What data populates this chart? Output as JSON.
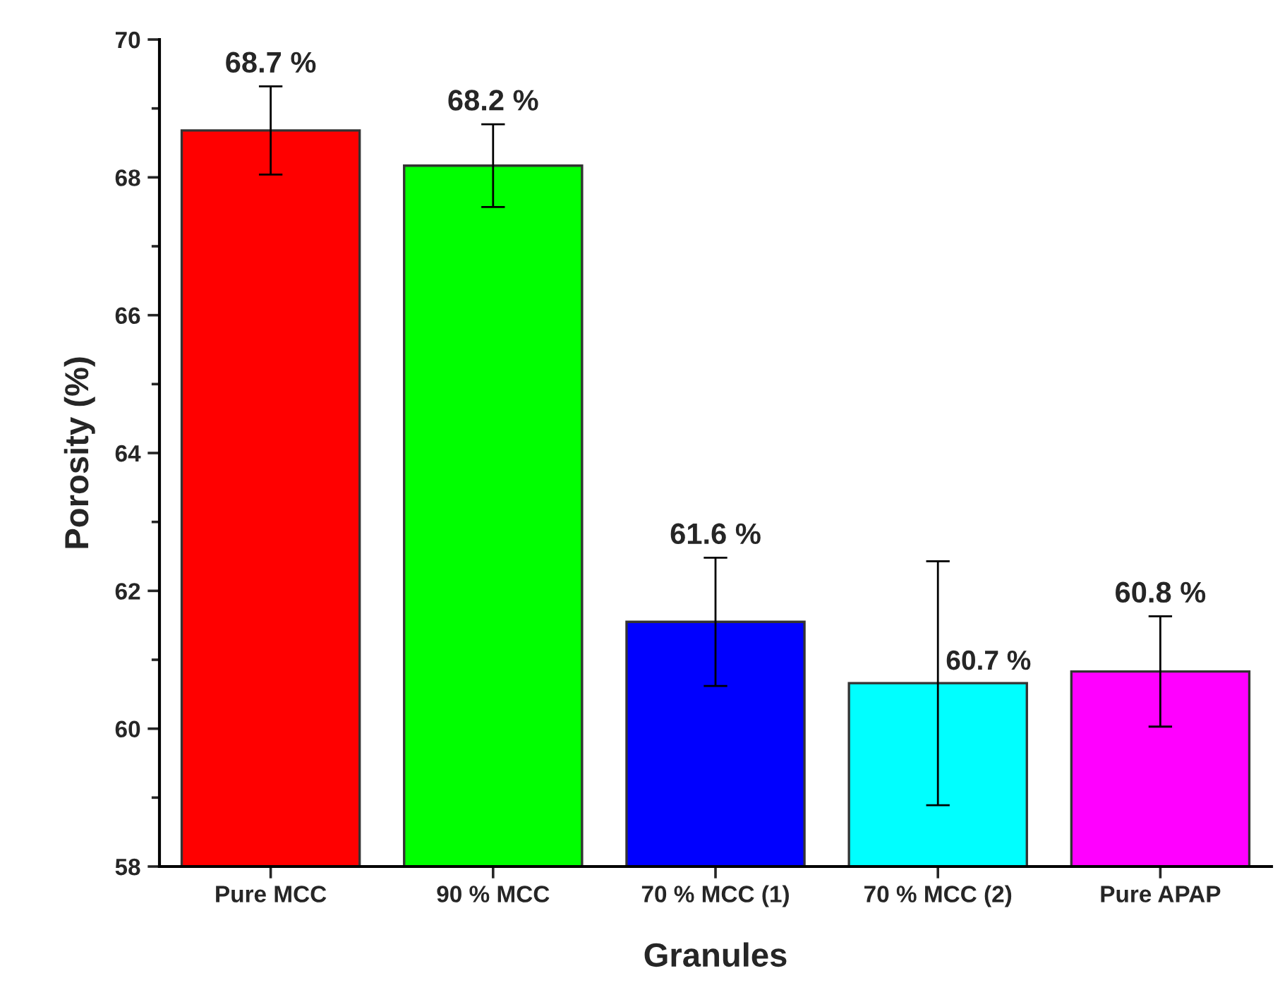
{
  "chart_data": {
    "type": "bar",
    "xlabel": "Granules",
    "ylabel": "Porosity (%)",
    "categories": [
      "Pure MCC",
      "90 % MCC",
      "70 % MCC (1)",
      "70 % MCC (2)",
      "Pure APAP"
    ],
    "values": [
      68.68,
      68.17,
      61.55,
      60.66,
      60.83
    ],
    "errors": [
      0.64,
      0.6,
      0.93,
      1.77,
      0.8
    ],
    "colors": [
      "#ff0000",
      "#00ff00",
      "#0000ff",
      "#00ffff",
      "#ff00ff"
    ],
    "value_labels": [
      "68.7 %",
      "68.2 %",
      "61.6 %",
      "60.7 %",
      "60.8 %"
    ],
    "ylim": [
      58,
      70
    ],
    "yticks": [
      58,
      60,
      62,
      64,
      66,
      68,
      70
    ],
    "grid": false,
    "legend": false
  }
}
